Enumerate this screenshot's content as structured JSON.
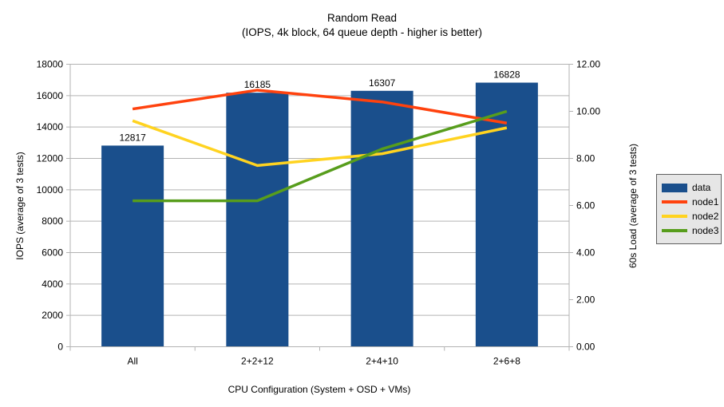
{
  "chart_data": {
    "type": "bar",
    "combo": "bar+line",
    "title": "Random Read",
    "subtitle": "(IOPS, 4k block, 64 queue depth - higher is better)",
    "categories": [
      "All",
      "2+2+12",
      "2+4+10",
      "2+6+8"
    ],
    "series": [
      {
        "name": "data",
        "type": "bar",
        "axis": "left",
        "color": "#1A4F8C",
        "values": [
          12817,
          16185,
          16307,
          16828
        ]
      },
      {
        "name": "node1",
        "type": "line",
        "axis": "right",
        "color": "#FF420E",
        "values": [
          10.1,
          10.9,
          10.4,
          9.5
        ]
      },
      {
        "name": "node2",
        "type": "line",
        "axis": "right",
        "color": "#FFD320",
        "values": [
          9.6,
          7.7,
          8.2,
          9.3
        ]
      },
      {
        "name": "node3",
        "type": "line",
        "axis": "right",
        "color": "#579D1C",
        "values": [
          6.2,
          6.2,
          8.4,
          10.0
        ]
      }
    ],
    "bar_value_labels": [
      "12817",
      "16185",
      "16307",
      "16828"
    ],
    "left_axis": {
      "title": "IOPS (average of 3 tests)",
      "min": 0,
      "max": 18000,
      "step": 2000,
      "tick_labels": [
        "0",
        "2000",
        "4000",
        "6000",
        "8000",
        "10000",
        "12000",
        "14000",
        "16000",
        "18000"
      ]
    },
    "right_axis": {
      "title": "60s Load (average of 3 tests)",
      "min": 0,
      "max": 12,
      "step": 2,
      "tick_labels": [
        "0.00",
        "2.00",
        "4.00",
        "6.00",
        "8.00",
        "10.00",
        "12.00"
      ]
    },
    "x_axis": {
      "title": "CPU Configuration (System + OSD + VMs)"
    },
    "legend": {
      "position": "right",
      "items": [
        {
          "label": "data",
          "color": "#1A4F8C",
          "swatch": "rect"
        },
        {
          "label": "node1",
          "color": "#FF420E",
          "swatch": "line"
        },
        {
          "label": "node2",
          "color": "#FFD320",
          "swatch": "line"
        },
        {
          "label": "node3",
          "color": "#579D1C",
          "swatch": "line"
        }
      ]
    },
    "grid": {
      "horizontal": true,
      "color": "#b3b3b3"
    },
    "colors": {
      "background": "#ffffff",
      "axis": "#b3b3b3",
      "text": "#000000",
      "legend_bg": "#e6e6e6",
      "legend_border": "#5f5f5f"
    }
  }
}
